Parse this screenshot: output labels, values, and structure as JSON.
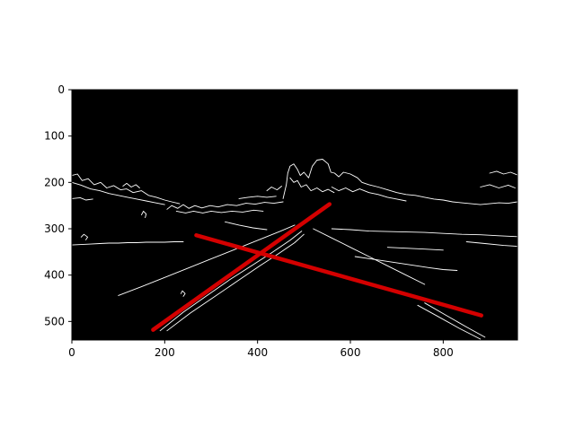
{
  "chart_data": {
    "type": "image",
    "title": "",
    "xlabel": "",
    "ylabel": "",
    "xlim": [
      0,
      960
    ],
    "ylim": [
      540,
      0
    ],
    "x_ticks": [
      0,
      200,
      400,
      600,
      800
    ],
    "y_ticks": [
      0,
      100,
      200,
      300,
      400,
      500
    ],
    "colors": {
      "background": "#000000",
      "edges": "#ffffff",
      "lane_lines": "#d40000"
    },
    "series": [
      {
        "points": [
          [
            175,
            518
          ],
          [
            555,
            247
          ]
        ]
      },
      {
        "points": [
          [
            268,
            314
          ],
          [
            882,
            487
          ]
        ]
      }
    ]
  }
}
